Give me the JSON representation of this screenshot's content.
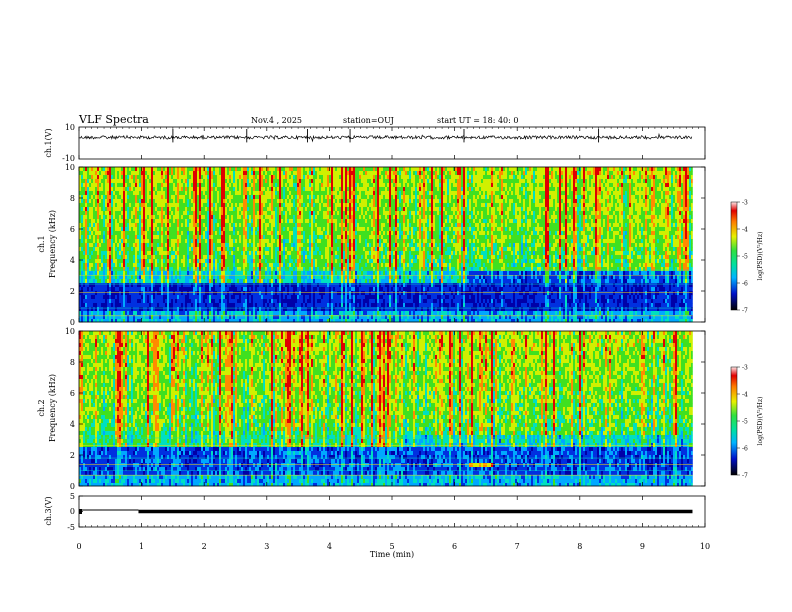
{
  "header": {
    "title": "VLF Spectra",
    "date": "Nov.4 , 2025",
    "station": "station=OUJ",
    "start": "start UT =  18: 40: 0"
  },
  "chart_data": [
    {
      "type": "line",
      "panel": "ch1-waveform",
      "ylabel": "ch.1(V)",
      "ylim": [
        -10,
        10
      ],
      "y_ticks": [
        "10",
        "-10"
      ],
      "baseline": 3.5,
      "spike_times_min": [
        1.5,
        2.68,
        3.65,
        4.33,
        6.15,
        8.3
      ]
    },
    {
      "type": "heatmap",
      "panel": "ch1-spectrogram",
      "ylabel_top": "ch.1",
      "ylabel": "Frequency (kHz)",
      "ylim": [
        0,
        10
      ],
      "y_ticks": [
        "0",
        "2",
        "4",
        "6",
        "8",
        "10"
      ],
      "colorbar_label": "log(PSD)(V²/Hz)",
      "colorbar_range": [
        -7,
        -3
      ],
      "colorbar_ticks": [
        "-3",
        "-4",
        "-5",
        "-6",
        "-7"
      ]
    },
    {
      "type": "heatmap",
      "panel": "ch2-spectrogram",
      "ylabel_top": "ch.2",
      "ylabel": "Frequency (kHz)",
      "ylim": [
        0,
        10
      ],
      "y_ticks": [
        "0",
        "2",
        "4",
        "6",
        "8",
        "10"
      ],
      "colorbar_label": "log(PSD)(V²/Hz)",
      "colorbar_range": [
        -7,
        -3
      ],
      "colorbar_ticks": [
        "-3",
        "-4",
        "-5",
        "-6",
        "-7"
      ]
    },
    {
      "type": "line",
      "panel": "ch3-waveform",
      "ylabel": "ch.3(V)",
      "ylim": [
        -5,
        5
      ],
      "y_ticks": [
        "5",
        "0",
        "-5"
      ],
      "segments": [
        {
          "x": [
            0,
            0.95
          ],
          "y": 0.5
        },
        {
          "x": [
            0.95,
            9.8
          ],
          "y": 0.0
        }
      ]
    }
  ],
  "xaxis": {
    "label": "Time (min)",
    "xlim": [
      0,
      10
    ],
    "ticks": [
      "0",
      "1",
      "2",
      "3",
      "4",
      "5",
      "6",
      "7",
      "8",
      "9",
      "10"
    ],
    "data_end": 9.8
  }
}
